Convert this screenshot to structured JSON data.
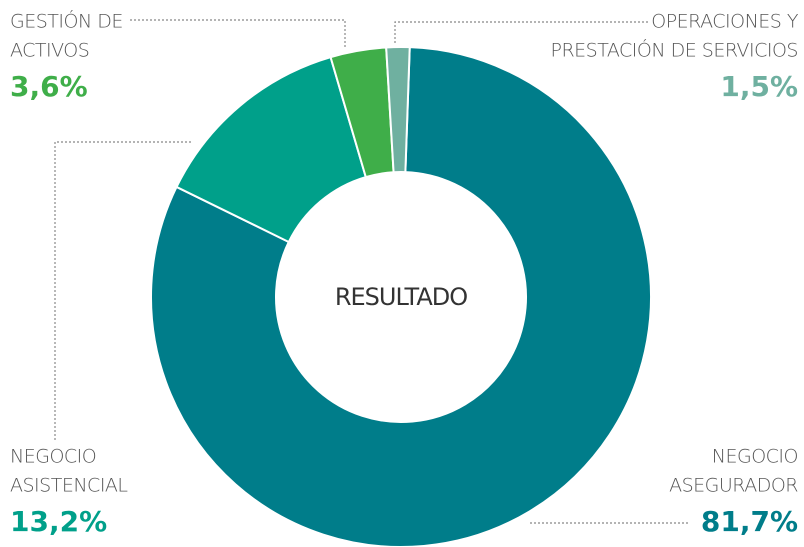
{
  "chart_data": {
    "type": "donut",
    "center_label": "RESULTADO",
    "categories": [
      [
        "NEGOCIO",
        "ASEGURADOR"
      ],
      [
        "NEGOCIO",
        "ASISTENCIAL"
      ],
      [
        "GESTIÓN DE",
        "ACTIVOS"
      ],
      [
        "OPERACIONES Y",
        "PRESTACIÓN DE SERVICIOS"
      ]
    ],
    "values": [
      81.7,
      13.2,
      3.6,
      1.5
    ],
    "value_labels": [
      "81,7%",
      "13,2%",
      "3,6%",
      "1,5%"
    ],
    "colors": [
      "#007d8a",
      "#00a08a",
      "#3fae49",
      "#6fb0a0"
    ]
  }
}
